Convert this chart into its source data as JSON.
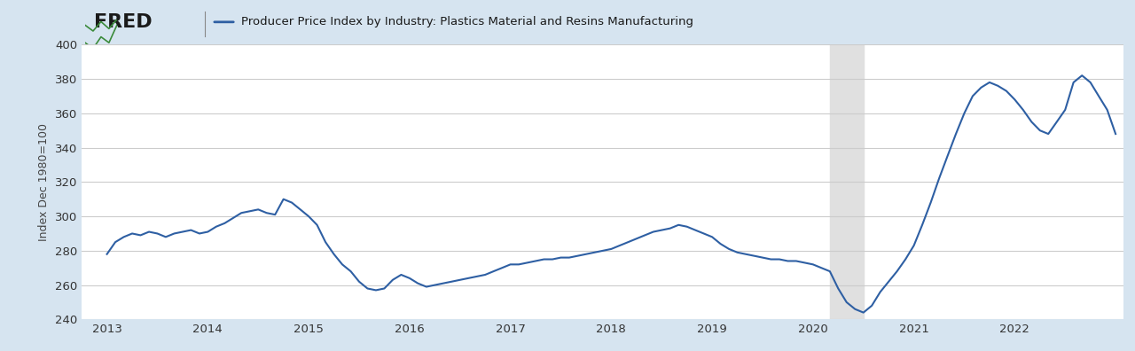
{
  "title": "Producer Price Index by Industry: Plastics Material and Resins Manufacturing",
  "ylabel": "Index Dec 1980=100",
  "line_color": "#2E5FA3",
  "background_color": "#d6e4f0",
  "plot_bg_color": "#ffffff",
  "recession_color": "#e0e0e0",
  "recession_start": 2020.17,
  "recession_end": 2020.5,
  "ylim": [
    240,
    400
  ],
  "yticks": [
    240,
    260,
    280,
    300,
    320,
    340,
    360,
    380,
    400
  ],
  "xlim_start": 2012.75,
  "xlim_end": 2023.08,
  "xtick_years": [
    2013,
    2014,
    2015,
    2016,
    2017,
    2018,
    2019,
    2020,
    2021,
    2022
  ],
  "fred_text": "FRED",
  "header_bg": "#d6e4f0",
  "data": {
    "dates": [
      2013.0,
      2013.083,
      2013.167,
      2013.25,
      2013.333,
      2013.417,
      2013.5,
      2013.583,
      2013.667,
      2013.75,
      2013.833,
      2013.917,
      2014.0,
      2014.083,
      2014.167,
      2014.25,
      2014.333,
      2014.417,
      2014.5,
      2014.583,
      2014.667,
      2014.75,
      2014.833,
      2014.917,
      2015.0,
      2015.083,
      2015.167,
      2015.25,
      2015.333,
      2015.417,
      2015.5,
      2015.583,
      2015.667,
      2015.75,
      2015.833,
      2015.917,
      2016.0,
      2016.083,
      2016.167,
      2016.25,
      2016.333,
      2016.417,
      2016.5,
      2016.583,
      2016.667,
      2016.75,
      2016.833,
      2016.917,
      2017.0,
      2017.083,
      2017.167,
      2017.25,
      2017.333,
      2017.417,
      2017.5,
      2017.583,
      2017.667,
      2017.75,
      2017.833,
      2017.917,
      2018.0,
      2018.083,
      2018.167,
      2018.25,
      2018.333,
      2018.417,
      2018.5,
      2018.583,
      2018.667,
      2018.75,
      2018.833,
      2018.917,
      2019.0,
      2019.083,
      2019.167,
      2019.25,
      2019.333,
      2019.417,
      2019.5,
      2019.583,
      2019.667,
      2019.75,
      2019.833,
      2019.917,
      2020.0,
      2020.083,
      2020.167,
      2020.25,
      2020.333,
      2020.417,
      2020.5,
      2020.583,
      2020.667,
      2020.75,
      2020.833,
      2020.917,
      2021.0,
      2021.083,
      2021.167,
      2021.25,
      2021.333,
      2021.417,
      2021.5,
      2021.583,
      2021.667,
      2021.75,
      2021.833,
      2021.917,
      2022.0,
      2022.083,
      2022.167,
      2022.25,
      2022.333,
      2022.417,
      2022.5,
      2022.583,
      2022.667,
      2022.75,
      2022.833,
      2022.917,
      2023.0
    ],
    "values": [
      278,
      285,
      288,
      290,
      289,
      291,
      290,
      288,
      290,
      291,
      292,
      290,
      291,
      294,
      296,
      299,
      302,
      303,
      304,
      302,
      301,
      310,
      308,
      304,
      300,
      295,
      285,
      278,
      272,
      268,
      262,
      258,
      257,
      258,
      263,
      266,
      264,
      261,
      259,
      260,
      261,
      262,
      263,
      264,
      265,
      266,
      268,
      270,
      272,
      272,
      273,
      274,
      275,
      275,
      276,
      276,
      277,
      278,
      279,
      280,
      281,
      283,
      285,
      287,
      289,
      291,
      292,
      293,
      295,
      294,
      292,
      290,
      288,
      284,
      281,
      279,
      278,
      277,
      276,
      275,
      275,
      274,
      274,
      273,
      272,
      270,
      268,
      258,
      250,
      246,
      244,
      248,
      256,
      262,
      268,
      275,
      283,
      295,
      308,
      322,
      335,
      348,
      360,
      370,
      375,
      378,
      376,
      373,
      368,
      362,
      355,
      350,
      348,
      355,
      362,
      378,
      382,
      378,
      370,
      362,
      348
    ]
  }
}
